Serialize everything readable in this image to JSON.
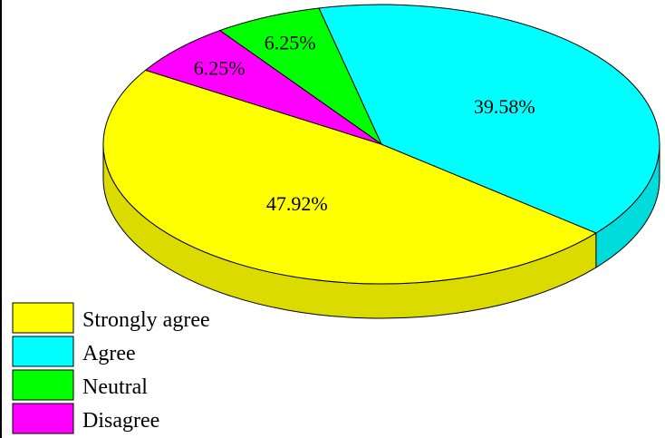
{
  "chart_data": {
    "type": "pie",
    "style": "3d",
    "title": "",
    "legend_position": "bottom-left",
    "slices": [
      {
        "label": "Strongly agree",
        "value": 47.92,
        "value_label": "47.92%",
        "color": "#ffff00"
      },
      {
        "label": "Agree",
        "value": 39.58,
        "value_label": "39.58%",
        "color": "#00ffff"
      },
      {
        "label": "Neutral",
        "value": 6.25,
        "value_label": "6.25%",
        "color": "#00ff00"
      },
      {
        "label": "Disagree",
        "value": 6.25,
        "value_label": "6.25%",
        "color": "#ff00ff"
      }
    ]
  }
}
